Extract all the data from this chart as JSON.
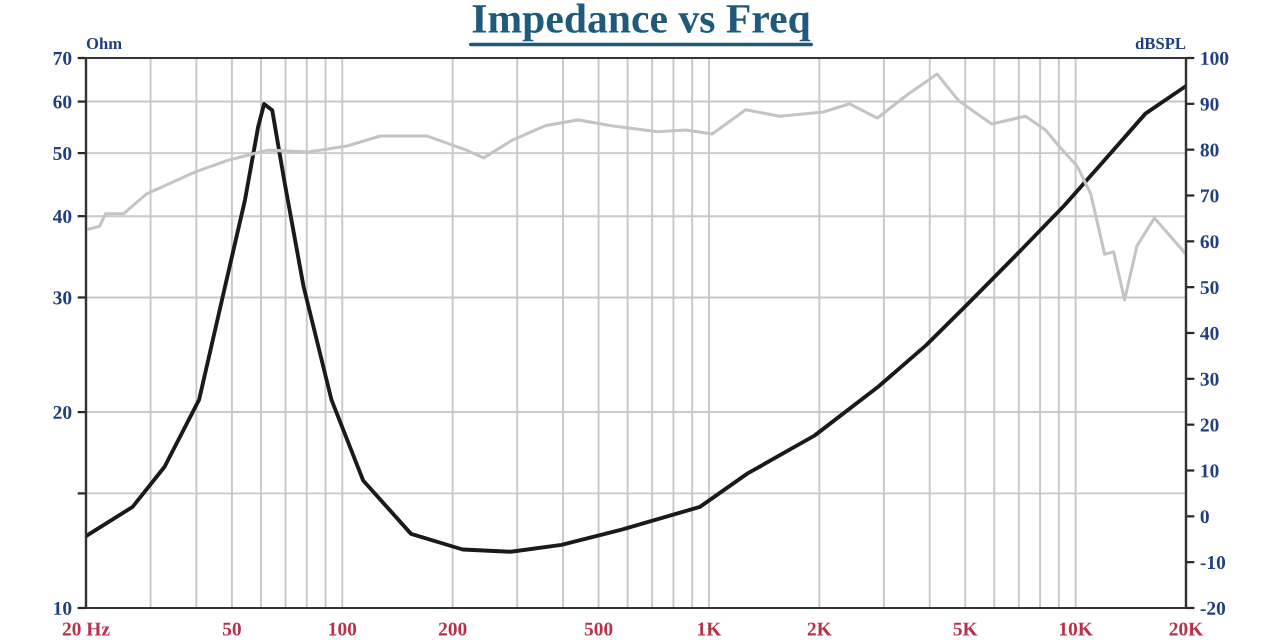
{
  "chart_data": {
    "type": "line",
    "title": "Impedance vs Freq",
    "ylabel": "Ohm",
    "y2label": "dBSPL",
    "log": "xy",
    "grid": true,
    "legend": false,
    "marker": "none",
    "line_style": "solid",
    "xlim": [
      20,
      20000
    ],
    "xticks": [
      {
        "value": 20,
        "label": "20 Hz"
      },
      {
        "value": 30,
        "label": null
      },
      {
        "value": 40,
        "label": null
      },
      50,
      {
        "value": 60,
        "label": null
      },
      {
        "value": 70,
        "label": null
      },
      {
        "value": 80,
        "label": null
      },
      {
        "value": 90,
        "label": null
      },
      100,
      200,
      {
        "value": 300,
        "label": null
      },
      {
        "value": 400,
        "label": null
      },
      500,
      {
        "value": 600,
        "label": null
      },
      {
        "value": 700,
        "label": null
      },
      {
        "value": 800,
        "label": null
      },
      {
        "value": 900,
        "label": null
      },
      {
        "value": 1000,
        "label": "1K"
      },
      {
        "value": 2000,
        "label": "2K"
      },
      {
        "value": 3000,
        "label": null
      },
      {
        "value": 4000,
        "label": null
      },
      {
        "value": 5000,
        "label": "5K"
      },
      {
        "value": 6000,
        "label": null
      },
      {
        "value": 7000,
        "label": null
      },
      {
        "value": 8000,
        "label": null
      },
      {
        "value": 9000,
        "label": null
      },
      {
        "value": 10000,
        "label": "10K"
      },
      {
        "value": 20000,
        "label": "20K"
      }
    ],
    "ylim": [
      10,
      70
    ],
    "yticks": [
      10,
      {
        "value": 15,
        "label": null
      },
      20,
      30,
      40,
      50,
      60,
      70
    ],
    "y2lim": [
      -20,
      100
    ],
    "y2ticks": [
      -20,
      -10,
      0,
      10,
      20,
      30,
      40,
      50,
      60,
      70,
      80,
      90,
      100
    ],
    "series": [
      {
        "color": "#1a1a1a",
        "x": [
          20,
          26.8,
          32.8,
          40.7,
          47.9,
          54.3,
          59,
          61.2,
          64.4,
          69.4,
          78.4,
          93.4,
          114,
          154,
          213,
          288,
          396,
          578,
          945,
          1275,
          1940,
          2900,
          3900,
          5010,
          6660,
          9300,
          12000,
          15500,
          20000
        ],
        "values": [
          12.9,
          14.3,
          16.5,
          20.9,
          31.2,
          42.4,
          55,
          59.5,
          58.2,
          45.5,
          31.2,
          20.9,
          15.7,
          13,
          12.3,
          12.2,
          12.5,
          13.2,
          14.3,
          16.1,
          18.4,
          21.9,
          25.3,
          29.1,
          34.2,
          41.5,
          48.8,
          57.5,
          63.4
        ]
      },
      {
        "color": "#c4c4c4",
        "axis": "y2",
        "x": [
          20,
          21.8,
          22.6,
          25.3,
          29.2,
          39.6,
          48.8,
          62.7,
          80.8,
          103,
          127,
          170,
          218,
          243,
          291,
          357,
          440,
          542,
          725,
          865,
          1020,
          1260,
          1560,
          2050,
          2420,
          2880,
          3490,
          4190,
          4780,
          5900,
          7300,
          8280,
          9000,
          10100,
          11000,
          12000,
          12700,
          13600,
          14700,
          16400,
          20000
        ],
        "values": [
          62.5,
          63.3,
          66,
          66,
          70.3,
          75.1,
          77.7,
          79.9,
          79.5,
          80.8,
          83,
          83,
          79.9,
          78.2,
          82.1,
          85.2,
          86.5,
          85.2,
          83.9,
          84.3,
          83.4,
          88.7,
          87.3,
          88.2,
          90,
          86.9,
          92.1,
          96.5,
          90.8,
          85.6,
          87.3,
          84.3,
          80.8,
          76.4,
          70.3,
          57.2,
          57.7,
          47.2,
          59,
          65.1,
          57.2
        ]
      }
    ]
  }
}
